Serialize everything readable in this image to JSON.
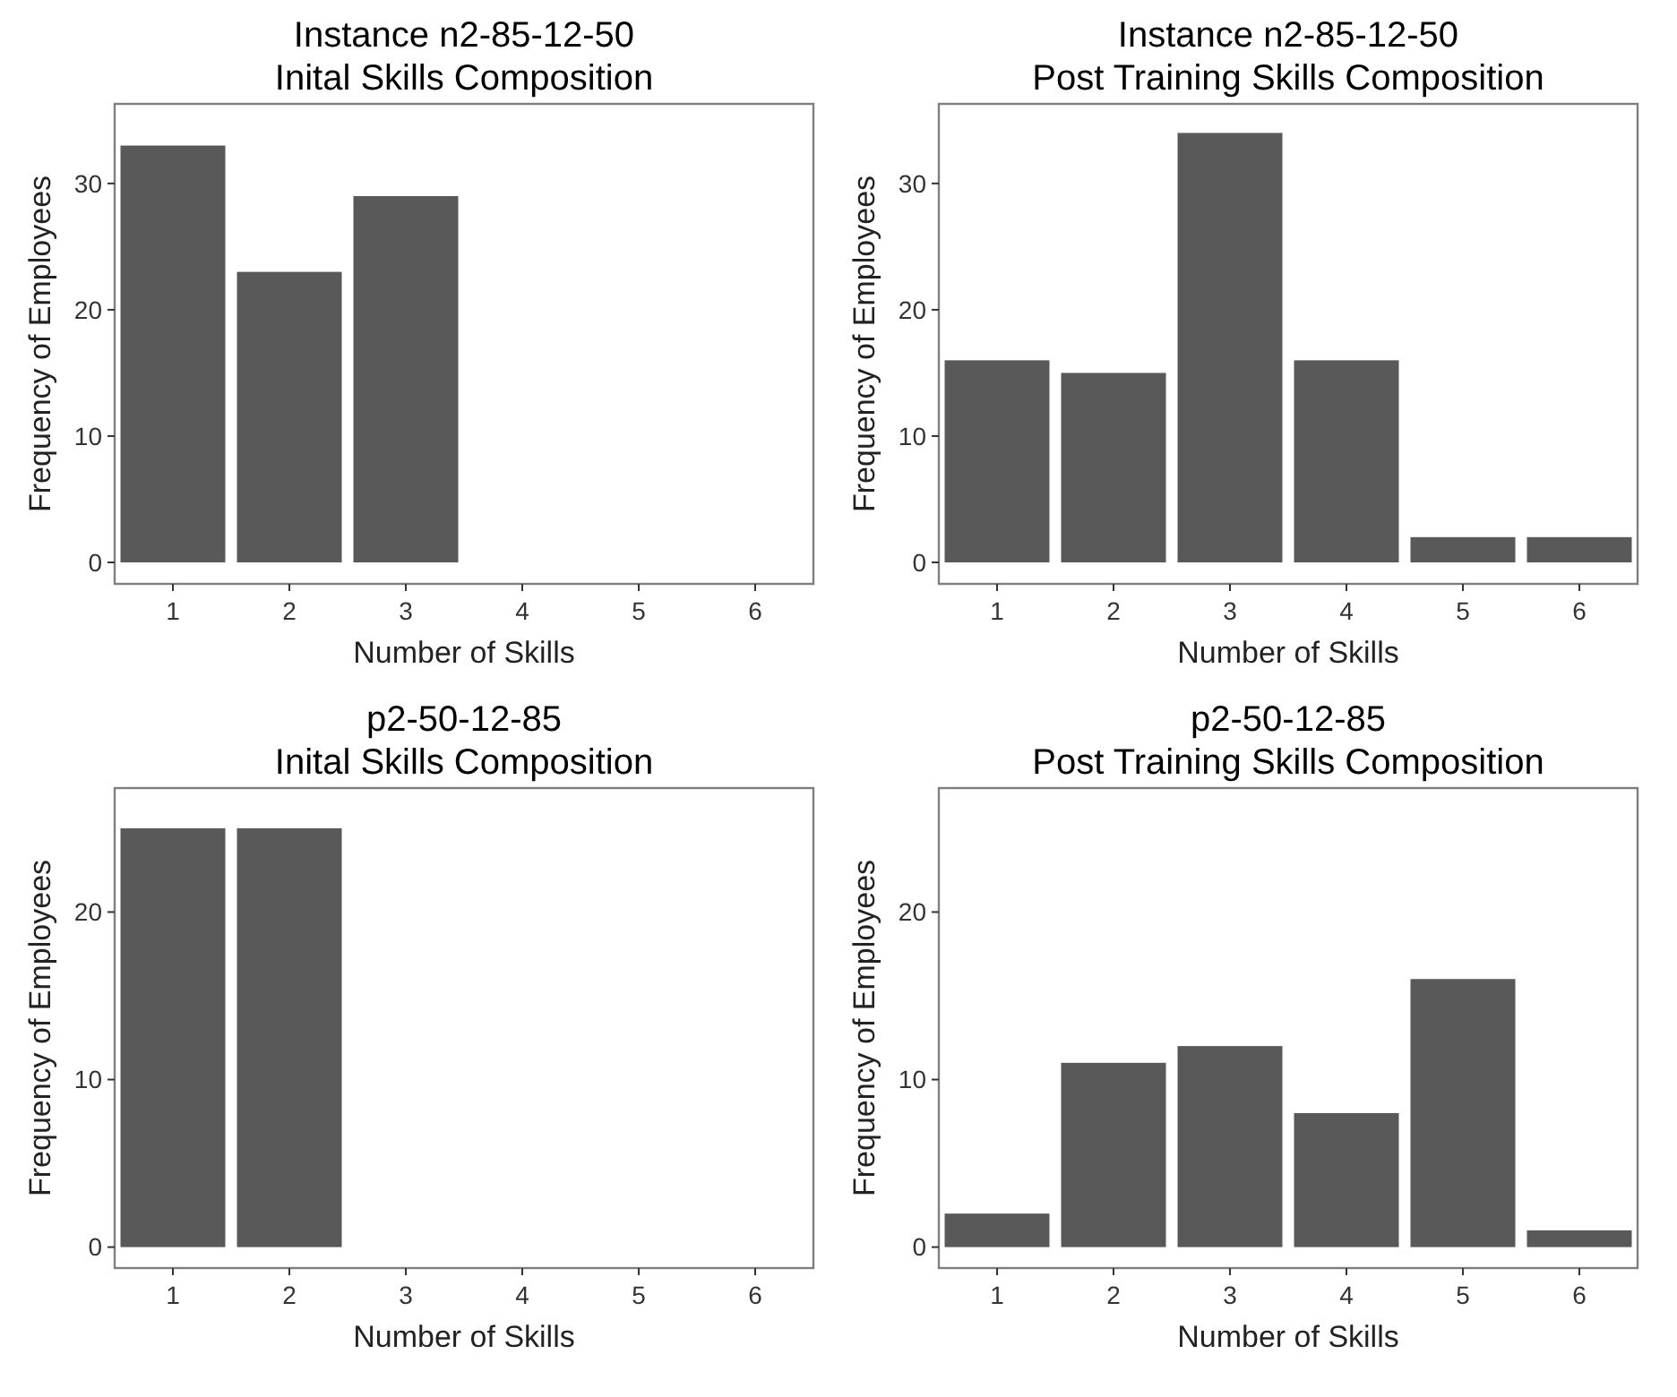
{
  "chart_data": [
    {
      "type": "bar",
      "title": "Instance n2-85-12-50",
      "subtitle": "Inital Skills Composition",
      "xlabel": "Number of Skills",
      "ylabel": "Frequency of Employees",
      "categories": [
        "1",
        "2",
        "3",
        "4",
        "5",
        "6"
      ],
      "values": [
        33,
        23,
        29,
        null,
        null,
        null
      ],
      "color": "#595959",
      "ylim": [
        -1.7,
        36.3
      ],
      "yticks": [
        0,
        10,
        20,
        30
      ],
      "grid": false
    },
    {
      "type": "bar",
      "title": "Instance n2-85-12-50",
      "subtitle": "Post Training Skills Composition",
      "xlabel": "Number of Skills",
      "ylabel": "Frequency of Employees",
      "categories": [
        "1",
        "2",
        "3",
        "4",
        "5",
        "6"
      ],
      "values": [
        16,
        15,
        34,
        16,
        2,
        2
      ],
      "color": "#595959",
      "ylim": [
        -1.7,
        36.3
      ],
      "yticks": [
        0,
        10,
        20,
        30
      ],
      "grid": false
    },
    {
      "type": "bar",
      "title": "p2-50-12-85",
      "subtitle": "Inital Skills Composition",
      "xlabel": "Number of Skills",
      "ylabel": "Frequency of Employees",
      "categories": [
        "1",
        "2",
        "3",
        "4",
        "5",
        "6"
      ],
      "values": [
        25,
        25,
        null,
        null,
        null,
        null
      ],
      "color": "#595959",
      "ylim": [
        -1.25,
        27.4
      ],
      "yticks": [
        0,
        10,
        20
      ],
      "grid": false
    },
    {
      "type": "bar",
      "title": "p2-50-12-85",
      "subtitle": "Post Training Skills Composition",
      "xlabel": "Number of Skills",
      "ylabel": "Frequency of Employees",
      "categories": [
        "1",
        "2",
        "3",
        "4",
        "5",
        "6"
      ],
      "values": [
        2,
        11,
        12,
        8,
        16,
        1
      ],
      "color": "#595959",
      "ylim": [
        -1.25,
        27.4
      ],
      "yticks": [
        0,
        10,
        20
      ],
      "grid": false
    }
  ]
}
